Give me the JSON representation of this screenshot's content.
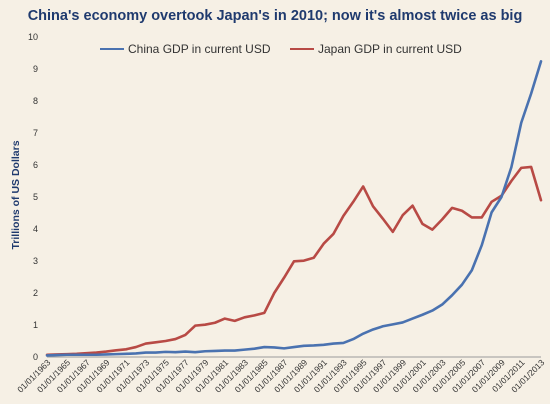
{
  "chart_data": {
    "type": "line",
    "title": "China's economy overtook Japan's in 2010; now it's almost twice as big",
    "ylabel": "Trillions of US Dollars",
    "xlabel": "",
    "ylim": [
      0,
      10
    ],
    "yticks": [
      "0",
      "1",
      "2",
      "3",
      "4",
      "5",
      "6",
      "7",
      "8",
      "9",
      "10"
    ],
    "x": [
      "01/01/1963",
      "01/01/1964",
      "01/01/1965",
      "01/01/1966",
      "01/01/1967",
      "01/01/1968",
      "01/01/1969",
      "01/01/1970",
      "01/01/1971",
      "01/01/1972",
      "01/01/1973",
      "01/01/1974",
      "01/01/1975",
      "01/01/1976",
      "01/01/1977",
      "01/01/1978",
      "01/01/1979",
      "01/01/1980",
      "01/01/1981",
      "01/01/1982",
      "01/01/1983",
      "01/01/1984",
      "01/01/1985",
      "01/01/1986",
      "01/01/1987",
      "01/01/1988",
      "01/01/1989",
      "01/01/1990",
      "01/01/1991",
      "01/01/1992",
      "01/01/1993",
      "01/01/1994",
      "01/01/1995",
      "01/01/1996",
      "01/01/1997",
      "01/01/1998",
      "01/01/1999",
      "01/01/2000",
      "01/01/2001",
      "01/01/2002",
      "01/01/2003",
      "01/01/2004",
      "01/01/2005",
      "01/01/2006",
      "01/01/2007",
      "01/01/2008",
      "01/01/2009",
      "01/01/2010",
      "01/01/2011",
      "01/01/2012",
      "01/01/2013"
    ],
    "xticks": [
      "01/01/1963",
      "01/01/1965",
      "01/01/1967",
      "01/01/1969",
      "01/01/1971",
      "01/01/1973",
      "01/01/1975",
      "01/01/1977",
      "01/01/1979",
      "01/01/1981",
      "01/01/1983",
      "01/01/1985",
      "01/01/1987",
      "01/01/1989",
      "01/01/1991",
      "01/01/1993",
      "01/01/1995",
      "01/01/1997",
      "01/01/1999",
      "01/01/2001",
      "01/01/2003",
      "01/01/2005",
      "01/01/2007",
      "01/01/2009",
      "01/01/2011",
      "01/01/2013"
    ],
    "series": [
      {
        "name": "China GDP in current USD",
        "color": "#4a72b0",
        "values": [
          0.05,
          0.06,
          0.07,
          0.07,
          0.07,
          0.07,
          0.08,
          0.09,
          0.1,
          0.11,
          0.14,
          0.14,
          0.16,
          0.15,
          0.17,
          0.15,
          0.18,
          0.19,
          0.2,
          0.2,
          0.23,
          0.26,
          0.31,
          0.3,
          0.27,
          0.31,
          0.35,
          0.36,
          0.38,
          0.42,
          0.44,
          0.56,
          0.73,
          0.86,
          0.96,
          1.02,
          1.08,
          1.2,
          1.32,
          1.45,
          1.64,
          1.93,
          2.26,
          2.71,
          3.49,
          4.52,
          5.0,
          5.93,
          7.32,
          8.23,
          9.24
        ]
      },
      {
        "name": "Japan GDP in current USD",
        "color": "#b84a45",
        "values": [
          0.07,
          0.08,
          0.09,
          0.1,
          0.12,
          0.14,
          0.17,
          0.21,
          0.24,
          0.31,
          0.42,
          0.46,
          0.5,
          0.56,
          0.69,
          0.98,
          1.01,
          1.07,
          1.2,
          1.13,
          1.24,
          1.3,
          1.38,
          2.0,
          2.48,
          2.99,
          3.01,
          3.1,
          3.54,
          3.85,
          4.41,
          4.85,
          5.33,
          4.71,
          4.32,
          3.91,
          4.43,
          4.73,
          4.16,
          3.98,
          4.3,
          4.66,
          4.57,
          4.36,
          4.36,
          4.85,
          5.04,
          5.5,
          5.91,
          5.94,
          4.9
        ]
      }
    ],
    "legend_position": "top"
  }
}
